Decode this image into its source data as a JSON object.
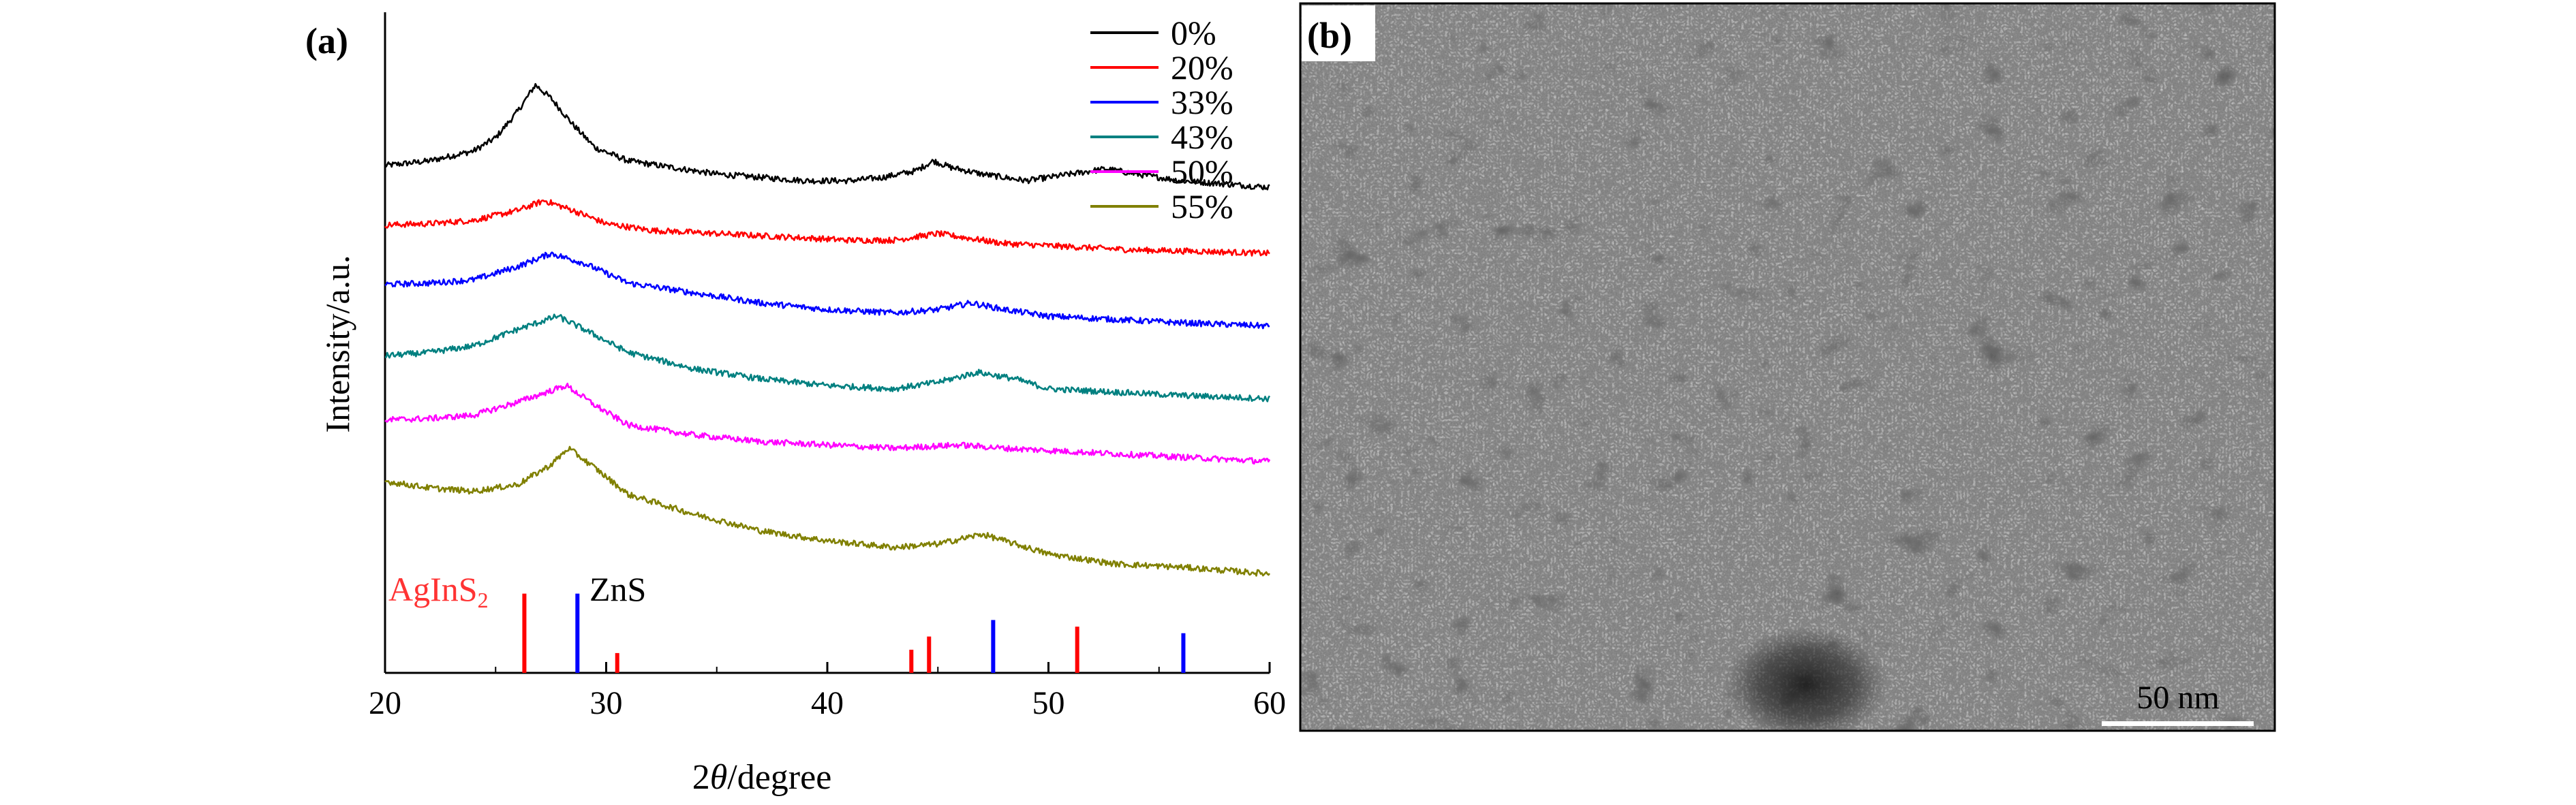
{
  "figure": {
    "panel_a_label": "(a)",
    "panel_b_label": "(b)"
  },
  "chart_data": {
    "type": "line",
    "xlabel_prefix": "2",
    "xlabel_symbol": "θ",
    "xlabel_suffix": "/degree",
    "ylabel": "Intensity/a.u.",
    "xlim": [
      20,
      60
    ],
    "xticks": [
      20,
      30,
      40,
      50,
      60
    ],
    "ylim": [
      0,
      100
    ],
    "grid": false,
    "legend_position": "top-right",
    "series": [
      {
        "name": "0%",
        "color": "#000000",
        "x": [
          20,
          22,
          24,
          25,
          26,
          26.8,
          27.5,
          28.5,
          29.5,
          31,
          33,
          35,
          37,
          39,
          41,
          42.5,
          44,
          44.8,
          45.6,
          47,
          49,
          51,
          52.6,
          54,
          56,
          58,
          60
        ],
        "y": [
          76.8,
          77.5,
          79.0,
          81.0,
          85.0,
          89.0,
          87.0,
          83.0,
          79.5,
          77.5,
          76.5,
          75.5,
          75.0,
          74.5,
          74.5,
          75.0,
          76.0,
          77.5,
          76.5,
          75.5,
          74.5,
          75.5,
          76.3,
          75.5,
          74.5,
          74.0,
          73.5
        ]
      },
      {
        "name": "20%",
        "color": "#ff0000",
        "x": [
          20,
          22,
          24,
          26,
          27.2,
          28.5,
          30,
          32,
          35,
          38,
          41,
          43,
          45,
          46,
          48,
          51,
          54,
          57,
          60
        ],
        "y": [
          67.8,
          68.0,
          68.5,
          70.0,
          71.5,
          70.0,
          68.0,
          67.0,
          66.5,
          66.0,
          65.5,
          65.5,
          66.5,
          66.0,
          65.0,
          64.5,
          64.0,
          63.8,
          63.5
        ]
      },
      {
        "name": "33%",
        "color": "#0000ff",
        "x": [
          20,
          22,
          24,
          26,
          27.5,
          29,
          31,
          34,
          37,
          40,
          43,
          45,
          46.5,
          48,
          50,
          53,
          56,
          60
        ],
        "y": [
          58.8,
          59.0,
          59.5,
          61.5,
          63.5,
          62.0,
          59.0,
          57.5,
          56.0,
          55.0,
          54.5,
          55.0,
          56.0,
          55.0,
          54.0,
          53.5,
          53.0,
          52.5
        ]
      },
      {
        "name": "43%",
        "color": "#008080",
        "x": [
          20,
          22,
          24,
          26,
          27.8,
          29,
          31,
          34,
          37,
          40,
          43,
          45,
          46.8,
          48.5,
          50,
          53,
          56,
          60
        ],
        "y": [
          48.0,
          48.5,
          49.5,
          52.0,
          54.0,
          52.0,
          48.5,
          46.0,
          44.5,
          43.5,
          43.0,
          44.0,
          45.5,
          44.5,
          43.0,
          42.5,
          42.0,
          41.5
        ]
      },
      {
        "name": "50%",
        "color": "#ff00ff",
        "x": [
          20,
          22,
          24,
          26,
          28.2,
          29.5,
          31,
          34,
          37,
          40,
          43,
          46,
          48,
          51,
          54,
          57,
          60
        ],
        "y": [
          38.3,
          38.5,
          39.0,
          41.0,
          43.5,
          40.5,
          37.5,
          36.0,
          35.0,
          34.5,
          34.0,
          34.5,
          34.0,
          33.5,
          33.0,
          32.5,
          32.0
        ]
      },
      {
        "name": "55%",
        "color": "#808000",
        "x": [
          20,
          22,
          24,
          26,
          27.5,
          28.3,
          29.5,
          31,
          34,
          37,
          40,
          43,
          45,
          47,
          48.5,
          50,
          53,
          56,
          60
        ],
        "y": [
          29.0,
          28.0,
          27.5,
          28.5,
          31.5,
          34.0,
          31.0,
          27.0,
          24.0,
          21.5,
          20.0,
          19.0,
          19.5,
          21.0,
          19.5,
          18.0,
          16.5,
          16.0,
          15.0
        ]
      }
    ],
    "reference_patterns": [
      {
        "name_main": "AgInS",
        "name_sub": "2",
        "color": "#ff0000",
        "peaks": [
          {
            "x": 26.3,
            "h": 12.0
          },
          {
            "x": 30.5,
            "h": 3.0
          },
          {
            "x": 43.8,
            "h": 3.5
          },
          {
            "x": 44.6,
            "h": 5.5
          },
          {
            "x": 51.3,
            "h": 7.0
          }
        ]
      },
      {
        "name": "ZnS",
        "color": "#0000ff",
        "peaks": [
          {
            "x": 28.7,
            "h": 12.0
          },
          {
            "x": 47.5,
            "h": 8.0
          },
          {
            "x": 56.1,
            "h": 6.0
          }
        ]
      }
    ]
  },
  "tem": {
    "scale_label": "50 nm"
  }
}
